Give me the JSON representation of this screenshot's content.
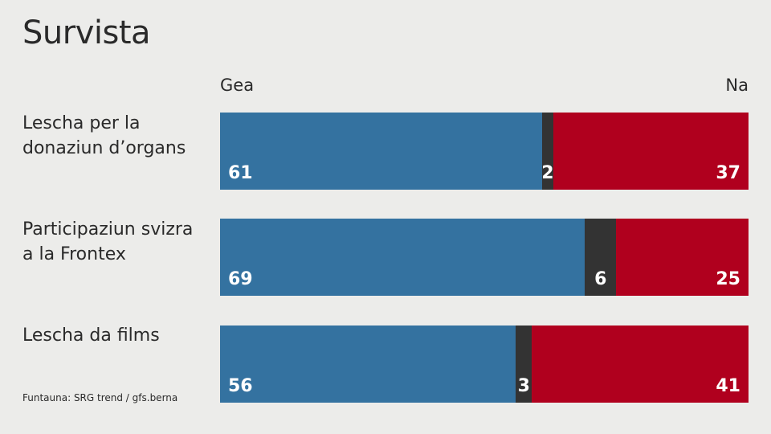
{
  "title": "Survista",
  "legend": {
    "yes": "Gea",
    "no": "Na"
  },
  "colors": {
    "yes": "#3472a0",
    "undecided": "#333333",
    "no": "#b0001e",
    "background": "#ececea"
  },
  "source": "Funtauna: SRG trend / gfs.berna",
  "chart_data": {
    "type": "bar",
    "orientation": "horizontal",
    "stacked": true,
    "categories": [
      "Lescha per la donaziun d’organs",
      "Participaziun svizra a la Frontex",
      "Lescha da films"
    ],
    "series": [
      {
        "name": "Gea",
        "values": [
          61,
          69,
          56
        ]
      },
      {
        "values": [
          2,
          6,
          3
        ]
      },
      {
        "name": "Na",
        "values": [
          37,
          25,
          41
        ]
      }
    ],
    "xlim": [
      0,
      100
    ]
  },
  "rows": [
    {
      "label_lines": [
        "Lescha per la",
        "donaziun d’organs"
      ],
      "yes": "61",
      "undecided": "2",
      "no": "37"
    },
    {
      "label_lines": [
        "Participaziun svizra",
        "a la Frontex"
      ],
      "yes": "69",
      "undecided": "6",
      "no": "25"
    },
    {
      "label_lines": [
        "Lescha da films"
      ],
      "yes": "56",
      "undecided": "3",
      "no": "41"
    }
  ]
}
